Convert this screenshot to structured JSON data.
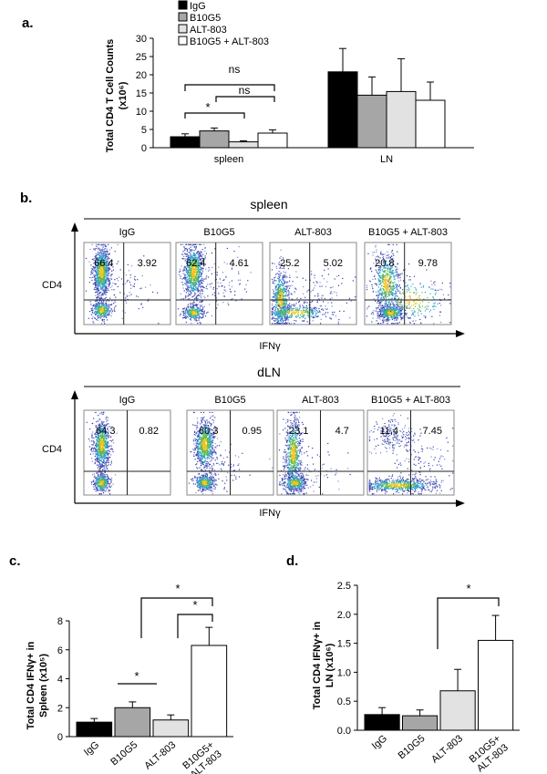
{
  "panel_a": {
    "label": "a.",
    "legend": [
      "IgG",
      "B10G5",
      "ALT-803",
      "B10G5 + ALT-803"
    ],
    "ylabel_line1": "Total CD4 T Cell Counts",
    "ylabel_line2": "(x10⁶)",
    "sig_labels": [
      "ns",
      "ns",
      "*"
    ]
  },
  "panel_b": {
    "label": "b.",
    "spleen_title": "spleen",
    "dln_title": "dLN",
    "y_axis_label": "CD4",
    "x_axis_label": "IFNγ",
    "spleen_plots": [
      {
        "name": "IgG",
        "q_left": "66.4",
        "q_right": "3.92"
      },
      {
        "name": "B10G5",
        "q_left": "62.4",
        "q_right": "4.61"
      },
      {
        "name": "ALT-803",
        "q_left": "25.2",
        "q_right": "5.02"
      },
      {
        "name": "B10G5 + ALT-803",
        "q_left": "20.8",
        "q_right": "9.78"
      }
    ],
    "dln_plots": [
      {
        "name": "IgG",
        "q_left": "64.3",
        "q_right": "0.82"
      },
      {
        "name": "B10G5",
        "q_left": "60.3",
        "q_right": "0.95"
      },
      {
        "name": "ALT-803",
        "q_left": "23.1",
        "q_right": "4.7"
      },
      {
        "name": "B10G5 + ALT-803",
        "q_left": "11.4",
        "q_right": "7.45"
      }
    ]
  },
  "panel_c": {
    "label": "c.",
    "sig_labels": [
      "*",
      "*",
      "*"
    ]
  },
  "panel_d": {
    "label": "d.",
    "sig_labels": [
      "*"
    ]
  },
  "colors": {
    "igg": "#000000",
    "b10g5": "#a6a6a6",
    "alt803": "#e2e2e2",
    "combo": "#ffffff"
  },
  "chart_data": [
    {
      "type": "bar",
      "title": "",
      "categories": [
        "spleen",
        "LN"
      ],
      "series": [
        {
          "name": "IgG",
          "values": [
            3.0,
            20.8
          ],
          "errors": [
            0.8,
            6.4
          ]
        },
        {
          "name": "B10G5",
          "values": [
            4.6,
            14.4
          ],
          "errors": [
            0.8,
            5.0
          ]
        },
        {
          "name": "ALT-803",
          "values": [
            1.6,
            15.4
          ],
          "errors": [
            0.3,
            9.0
          ]
        },
        {
          "name": "B10G5 + ALT-803",
          "values": [
            4.0,
            13.0
          ],
          "errors": [
            0.9,
            5.0
          ]
        }
      ],
      "xlabel": "",
      "ylabel": "Total CD4 T Cell Counts (x10⁶)",
      "ylim": [
        0,
        30
      ],
      "yticks": [
        0,
        5,
        10,
        15,
        20,
        25,
        30
      ]
    },
    {
      "type": "bar",
      "title": "",
      "categories": [
        "IgG",
        "B10G5",
        "ALT-803",
        "B10G5+ ALT-803"
      ],
      "values": [
        1.0,
        2.0,
        1.15,
        6.3
      ],
      "errors": [
        0.25,
        0.4,
        0.35,
        1.25
      ],
      "xlabel": "",
      "ylabel": "Total CD4 IFNγ+ in Spleen (x10⁵)",
      "ylim": [
        0,
        8
      ],
      "yticks": [
        0,
        2,
        4,
        6,
        8
      ]
    },
    {
      "type": "bar",
      "title": "",
      "categories": [
        "IgG",
        "B10G5",
        "ALT-803",
        "B10G5+ ALT-803"
      ],
      "values": [
        0.27,
        0.25,
        0.68,
        1.55
      ],
      "errors": [
        0.12,
        0.1,
        0.37,
        0.43
      ],
      "xlabel": "",
      "ylabel": "Total CD4 IFNγ+ in LN (x10⁶)",
      "ylim": [
        0,
        2.5
      ],
      "yticks": [
        0,
        0.5,
        1.0,
        1.5,
        2.0,
        2.5
      ]
    }
  ]
}
